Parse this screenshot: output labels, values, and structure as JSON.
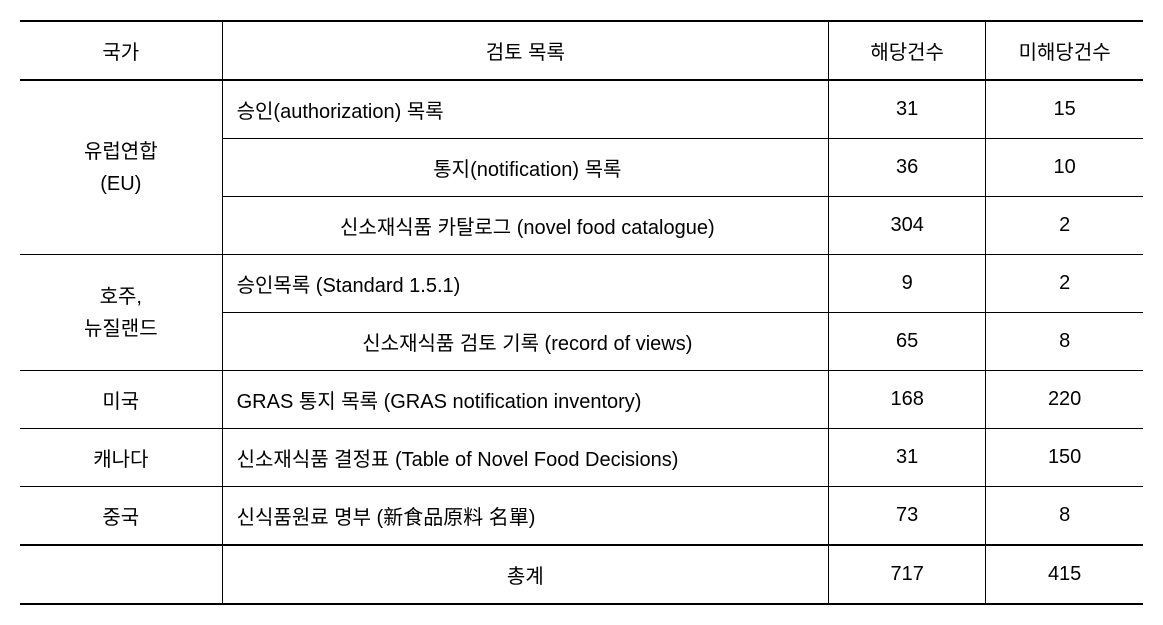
{
  "table": {
    "columns": [
      {
        "label": "국가",
        "width": "18%"
      },
      {
        "label": "검토 목록",
        "width": "54%"
      },
      {
        "label": "해당건수",
        "width": "14%"
      },
      {
        "label": "미해당건수",
        "width": "14%"
      }
    ],
    "groups": [
      {
        "country": "유럽연합\n(EU)",
        "rows": [
          {
            "list": "승인(authorization) 목록",
            "applicable": 31,
            "notApplicable": 15
          },
          {
            "list": "통지(notification) 목록",
            "applicable": 36,
            "notApplicable": 10
          },
          {
            "list": "신소재식품 카탈로그 (novel food catalogue)",
            "applicable": 304,
            "notApplicable": 2
          }
        ]
      },
      {
        "country": "호주,\n뉴질랜드",
        "rows": [
          {
            "list": "승인목록 (Standard 1.5.1)",
            "applicable": 9,
            "notApplicable": 2
          },
          {
            "list": "신소재식품 검토 기록 (record of views)",
            "applicable": 65,
            "notApplicable": 8
          }
        ]
      },
      {
        "country": "미국",
        "rows": [
          {
            "list": "GRAS 통지 목록 (GRAS notification inventory)",
            "applicable": 168,
            "notApplicable": 220
          }
        ]
      },
      {
        "country": "캐나다",
        "rows": [
          {
            "list": "신소재식품 결정표 (Table of Novel Food Decisions)",
            "applicable": 31,
            "notApplicable": 150
          }
        ]
      },
      {
        "country": "중국",
        "rows": [
          {
            "list": "신식품원료 명부 (新食品原料 名單)",
            "applicable": 73,
            "notApplicable": 8
          }
        ]
      }
    ],
    "total": {
      "label": "총계",
      "applicable": 717,
      "notApplicable": 415
    }
  }
}
